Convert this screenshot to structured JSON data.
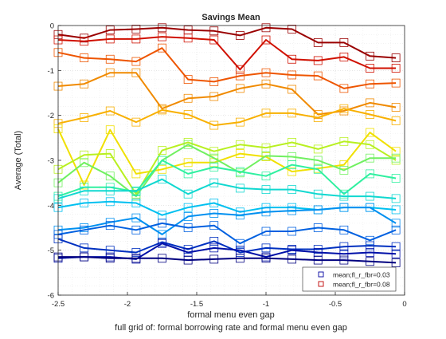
{
  "chart_data": {
    "type": "line",
    "title": "Savings Mean",
    "xlabel": "formal menu even gap",
    "ylabel": "Average (Total)",
    "caption": "full grid of: formal borrowing rate and formal menu even gap",
    "xlim": [
      -2.5,
      0
    ],
    "ylim": [
      -6,
      0
    ],
    "x_ticks": [
      "-2.5",
      "-2",
      "-1.5",
      "-1",
      "-0.5",
      "0"
    ],
    "y_ticks": [
      "-6",
      "-5",
      "-4",
      "-3",
      "-2",
      "-1",
      "0"
    ],
    "grid": true,
    "legend_position": "bottom-right",
    "legend_entries": [
      {
        "label": "mean;fl_r_fbr=0.03",
        "color": "#0000a0"
      },
      {
        "label": "mean;fl_r_fbr=0.08",
        "color": "#c00000"
      }
    ],
    "x": [
      -2.5,
      -2.3125,
      -2.125,
      -1.9375,
      -1.75,
      -1.5625,
      -1.375,
      -1.1875,
      -1.0,
      -0.8125,
      -0.625,
      -0.4375,
      -0.25,
      -0.0625
    ],
    "series": [
      {
        "color": "#9a0000",
        "values": [
          -0.2,
          -0.28,
          -0.1,
          -0.08,
          -0.05,
          -0.1,
          -0.12,
          -0.22,
          -0.05,
          -0.08,
          -0.38,
          -0.38,
          -0.68,
          -0.72
        ]
      },
      {
        "color": "#d01000",
        "values": [
          -0.32,
          -0.35,
          -0.3,
          -0.3,
          -0.25,
          -0.28,
          -0.32,
          -0.98,
          -0.32,
          -0.75,
          -0.78,
          -0.7,
          -0.95,
          -0.95
        ]
      },
      {
        "color": "#ee5500",
        "values": [
          -0.6,
          -0.72,
          -0.75,
          -0.8,
          -0.5,
          -1.2,
          -1.25,
          -1.12,
          -1.05,
          -1.1,
          -1.12,
          -1.4,
          -1.3,
          -1.28
        ]
      },
      {
        "color": "#f08a00",
        "values": [
          -1.35,
          -1.3,
          -1.05,
          -1.05,
          -1.85,
          -1.62,
          -1.58,
          -1.4,
          -1.3,
          -1.42,
          -1.98,
          -1.9,
          -1.72,
          -1.82
        ]
      },
      {
        "color": "#f8b000",
        "values": [
          -2.18,
          -2.05,
          -1.9,
          -2.15,
          -1.88,
          -1.98,
          -2.22,
          -2.15,
          -1.95,
          -1.95,
          -2.05,
          -1.85,
          -1.98,
          -2.12
        ]
      },
      {
        "color": "#f0e000",
        "values": [
          -2.3,
          -3.55,
          -2.32,
          -3.3,
          -3.2,
          -3.05,
          -3.05,
          -2.85,
          -2.92,
          -3.25,
          -3.18,
          -3.1,
          -2.38,
          -2.8
        ]
      },
      {
        "color": "#b8f020",
        "values": [
          -3.2,
          -2.88,
          -2.85,
          -3.75,
          -2.78,
          -2.6,
          -2.8,
          -2.65,
          -2.72,
          -2.6,
          -2.75,
          -2.58,
          -2.65,
          -3.0
        ]
      },
      {
        "color": "#70f060",
        "values": [
          -3.5,
          -3.05,
          -3.35,
          -3.8,
          -3.0,
          -2.65,
          -2.95,
          -3.28,
          -2.9,
          -2.92,
          -3.0,
          -3.22,
          -2.95,
          -2.95
        ]
      },
      {
        "color": "#30f0a0",
        "values": [
          -3.8,
          -3.6,
          -3.6,
          -3.7,
          -3.0,
          -3.3,
          -3.15,
          -3.25,
          -3.35,
          -3.1,
          -3.2,
          -3.75,
          -3.3,
          -3.4
        ]
      },
      {
        "color": "#10d8d0",
        "values": [
          -3.85,
          -3.68,
          -3.68,
          -3.68,
          -3.42,
          -3.75,
          -3.5,
          -3.62,
          -3.65,
          -3.65,
          -3.75,
          -3.8,
          -3.8,
          -3.85
        ]
      },
      {
        "color": "#00c0f0",
        "values": [
          -4.05,
          -3.95,
          -3.92,
          -3.95,
          -4.22,
          -4.05,
          -3.95,
          -4.15,
          -4.05,
          -4.05,
          -4.1,
          -4.05,
          -4.05,
          -4.1
        ]
      },
      {
        "color": "#0090f0",
        "values": [
          -4.55,
          -4.5,
          -4.38,
          -4.28,
          -4.65,
          -4.25,
          -4.18,
          -4.22,
          -4.15,
          -4.12,
          -4.1,
          -4.05,
          -4.05,
          -4.4
        ]
      },
      {
        "color": "#0060e0",
        "values": [
          -4.65,
          -4.55,
          -4.45,
          -4.55,
          -4.4,
          -4.5,
          -4.45,
          -4.85,
          -4.58,
          -4.58,
          -4.5,
          -4.55,
          -4.78,
          -4.55
        ]
      },
      {
        "color": "#0030c0",
        "values": [
          -4.75,
          -4.95,
          -5.0,
          -5.05,
          -4.82,
          -4.98,
          -4.8,
          -5.05,
          -4.95,
          -4.98,
          -4.98,
          -4.92,
          -4.9,
          -4.92
        ]
      },
      {
        "color": "#0010a8",
        "values": [
          -5.18,
          -5.15,
          -5.15,
          -5.2,
          -4.85,
          -5.05,
          -4.95,
          -5.0,
          -5.15,
          -5.0,
          -5.05,
          -5.08,
          -5.05,
          -5.08
        ]
      },
      {
        "color": "#000080",
        "values": [
          -5.15,
          -5.15,
          -5.18,
          -5.18,
          -5.18,
          -5.22,
          -5.2,
          -5.18,
          -5.18,
          -5.2,
          -5.22,
          -5.22,
          -5.25,
          -5.28
        ]
      }
    ]
  }
}
